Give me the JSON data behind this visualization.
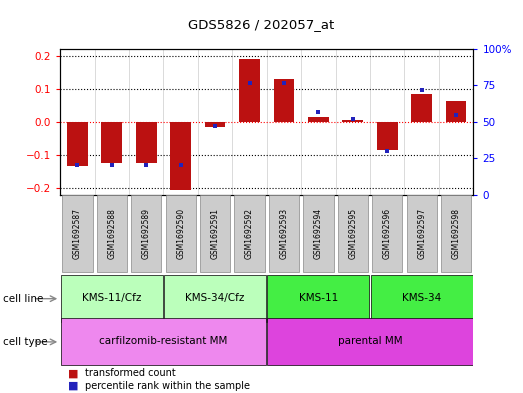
{
  "title": "GDS5826 / 202057_at",
  "samples": [
    "GSM1692587",
    "GSM1692588",
    "GSM1692589",
    "GSM1692590",
    "GSM1692591",
    "GSM1692592",
    "GSM1692593",
    "GSM1692594",
    "GSM1692595",
    "GSM1692596",
    "GSM1692597",
    "GSM1692598"
  ],
  "transformed_count": [
    -0.135,
    -0.125,
    -0.125,
    -0.205,
    -0.015,
    0.19,
    0.13,
    0.015,
    0.005,
    -0.085,
    0.085,
    0.062
  ],
  "percentile_rank": [
    20,
    20,
    20,
    20,
    47,
    77,
    77,
    57,
    52,
    30,
    72,
    55
  ],
  "cell_line_groups": [
    {
      "label": "KMS-11/Cfz",
      "start": 0,
      "end": 3,
      "color": "#bbffbb"
    },
    {
      "label": "KMS-34/Cfz",
      "start": 3,
      "end": 6,
      "color": "#bbffbb"
    },
    {
      "label": "KMS-11",
      "start": 6,
      "end": 9,
      "color": "#44ee44"
    },
    {
      "label": "KMS-34",
      "start": 9,
      "end": 12,
      "color": "#44ee44"
    }
  ],
  "cell_type_groups": [
    {
      "label": "carfilzomib-resistant MM",
      "start": 0,
      "end": 6,
      "color": "#ee88ee"
    },
    {
      "label": "parental MM",
      "start": 6,
      "end": 12,
      "color": "#dd44dd"
    }
  ],
  "bar_color": "#bb1111",
  "dot_color": "#2222bb",
  "ylim": [
    -0.22,
    0.22
  ],
  "y2lim": [
    0,
    100
  ],
  "yticks": [
    -0.2,
    -0.1,
    0.0,
    0.1,
    0.2
  ],
  "y2ticks": [
    0,
    25,
    50,
    75,
    100
  ],
  "y2ticklabels": [
    "0",
    "25",
    "50",
    "75",
    "100%"
  ],
  "background_color": "#ffffff",
  "sample_box_color": "#cccccc",
  "legend_items": [
    {
      "label": "transformed count",
      "color": "#bb1111"
    },
    {
      "label": "percentile rank within the sample",
      "color": "#2222bb"
    }
  ]
}
